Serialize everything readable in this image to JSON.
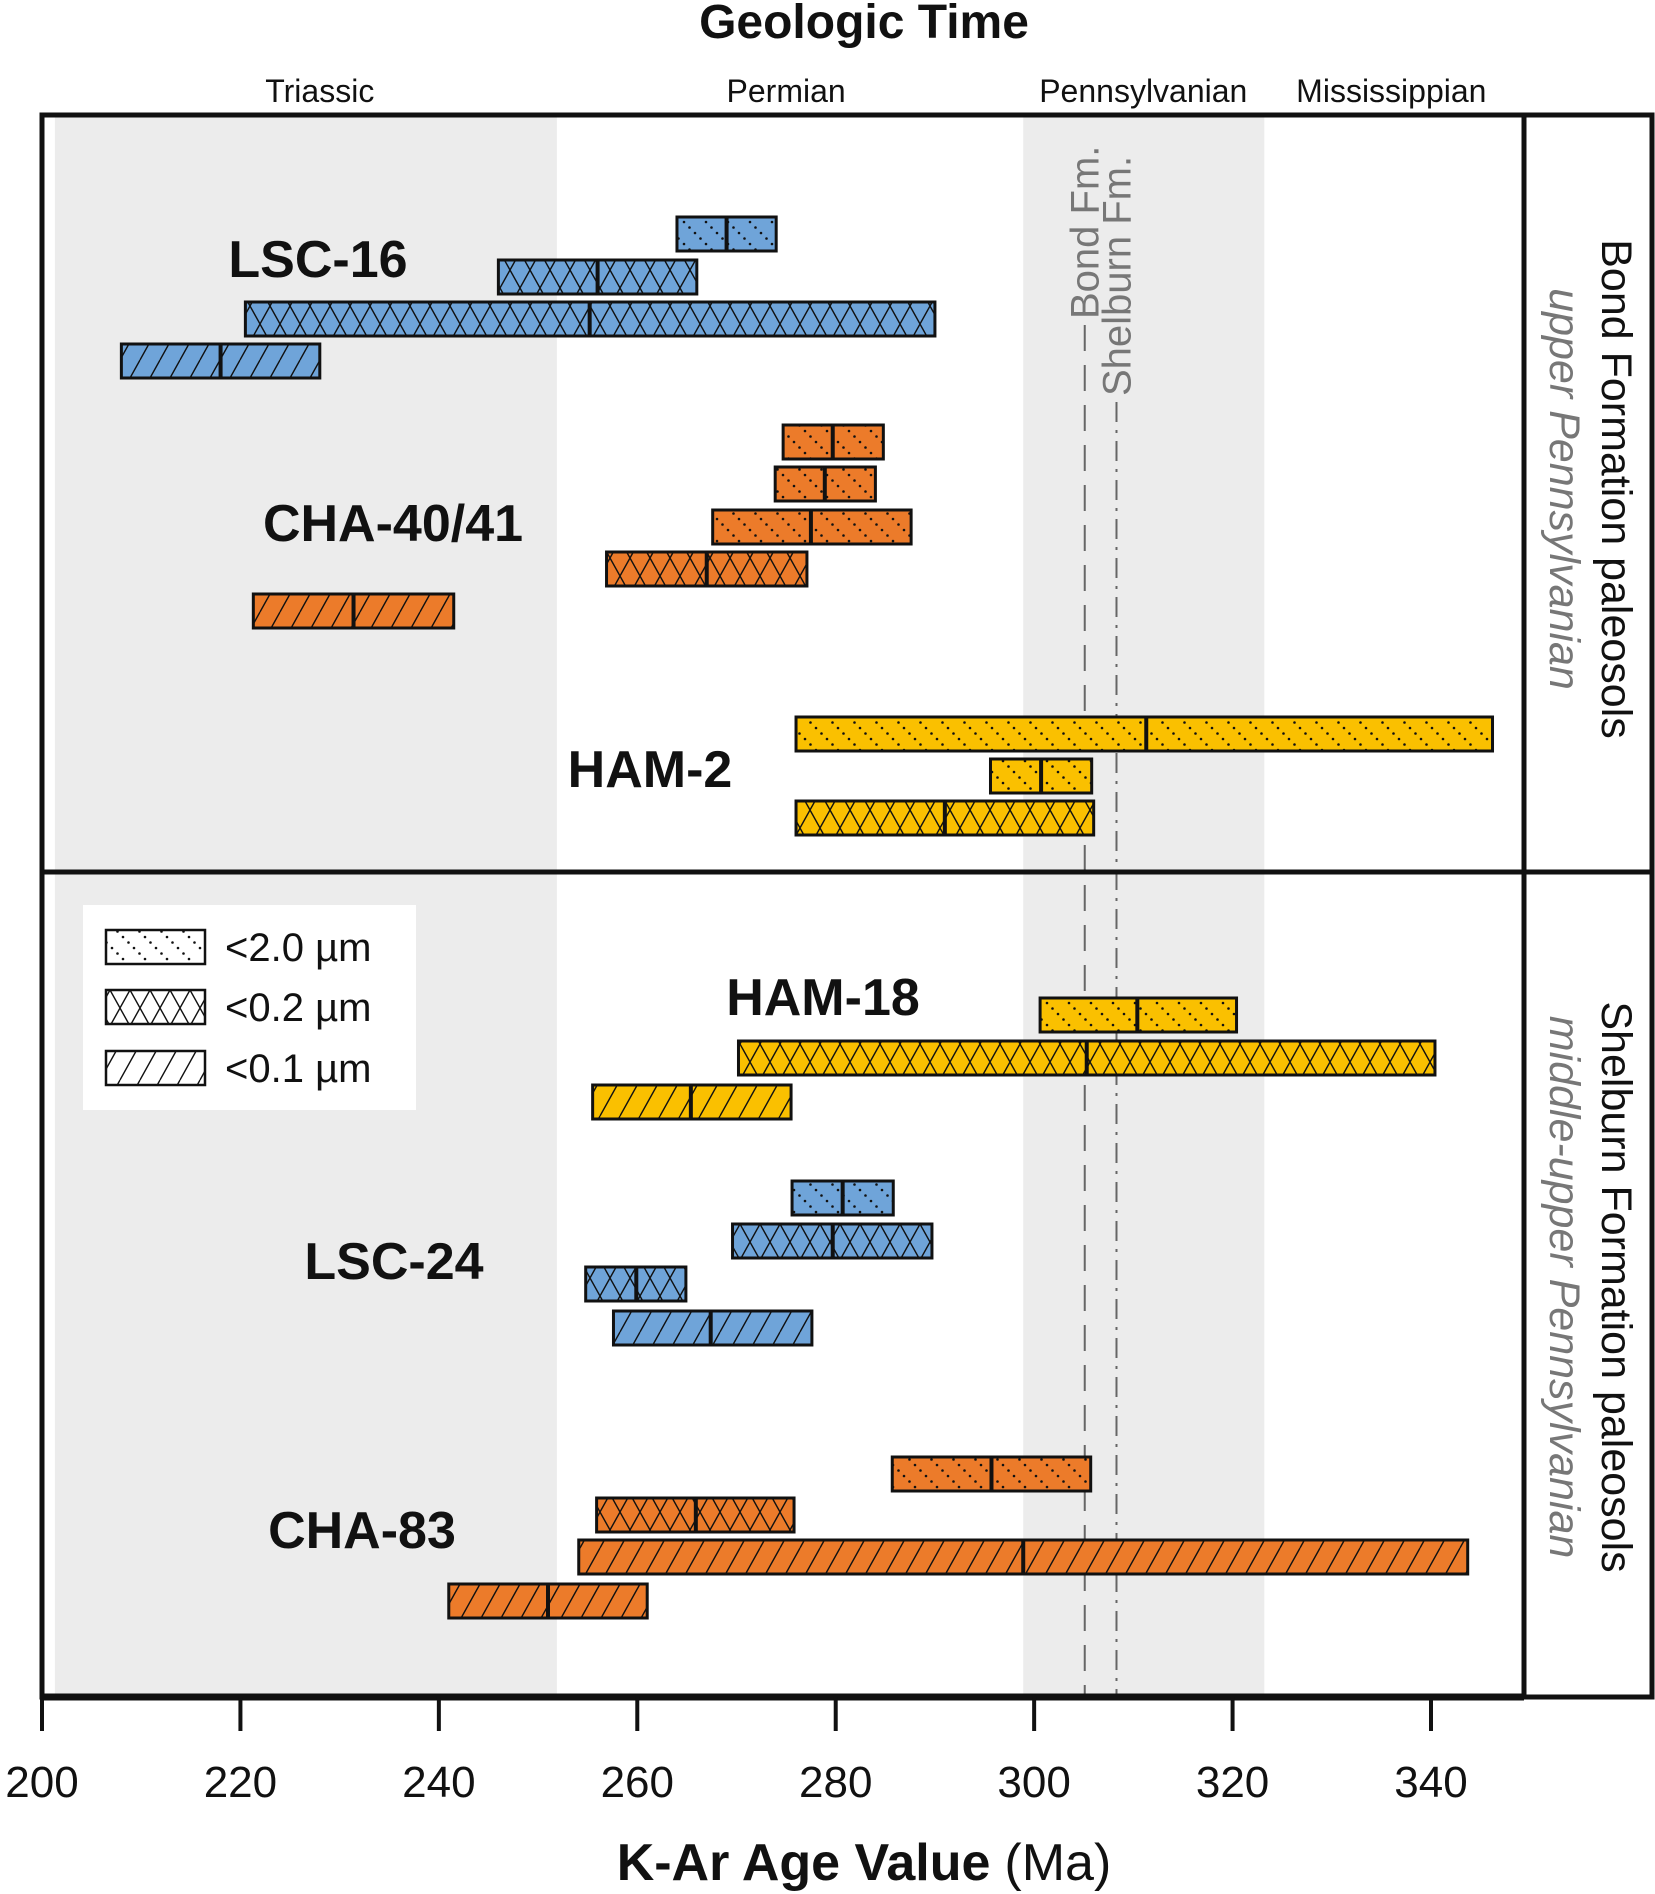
{
  "chart_data": {
    "type": "bar",
    "subtype": "horizontal range bars",
    "title": "Geologic Time",
    "xlabel_bold": "K-Ar Age Value",
    "xlabel_unit": "(Ma)",
    "xlim": [
      200,
      350
    ],
    "xticks": [
      200,
      220,
      240,
      260,
      280,
      300,
      320,
      340
    ],
    "periods": [
      {
        "label": "Triassic",
        "center": 228
      },
      {
        "label": "Permian",
        "center": 275
      },
      {
        "label": "Pennsylvanian",
        "center": 311
      },
      {
        "label": "Mississippian",
        "center": 336
      }
    ],
    "shaded_ranges": [
      [
        201.3,
        251.9
      ],
      [
        298.9,
        323.2
      ]
    ],
    "reference_lines": [
      {
        "label": "Bond Fm.",
        "value": 305.1,
        "style": "dashed"
      },
      {
        "label": "Shelburn Fm.",
        "value": 308.3,
        "style": "dash-dot"
      }
    ],
    "legend": {
      "placement": "lower-left panel top-left",
      "entries": [
        {
          "key": "coarse",
          "label": "<2.0 µm",
          "pattern": "dotted-diagonal"
        },
        {
          "key": "medium",
          "label": "<0.2 µm",
          "pattern": "crosshatch"
        },
        {
          "key": "fine",
          "label": "<0.1 µm",
          "pattern": "diagonal-hatch"
        }
      ]
    },
    "panels": [
      {
        "label": "Bond Formation paleosols",
        "sublabel": "upper Pennsylvanian",
        "samples": [
          {
            "name": "LSC-16",
            "color": "#6fa4d9",
            "bars": [
              {
                "fraction": "coarse",
                "min": 264,
                "max": 274,
                "age": 269
              },
              {
                "fraction": "medium",
                "min": 246,
                "max": 266,
                "age": 256
              },
              {
                "fraction": "medium",
                "min": 220.5,
                "max": 290,
                "age": 255.2
              },
              {
                "fraction": "fine",
                "min": 208,
                "max": 228,
                "age": 218
              }
            ]
          },
          {
            "name": "CHA-40/41",
            "color": "#ec7b2a",
            "bars": [
              {
                "fraction": "coarse",
                "min": 274.7,
                "max": 284.8,
                "age": 279.7
              },
              {
                "fraction": "coarse",
                "min": 273.9,
                "max": 284,
                "age": 278.9
              },
              {
                "fraction": "coarse",
                "min": 267.6,
                "max": 287.6,
                "age": 277.5
              },
              {
                "fraction": "medium",
                "min": 256.9,
                "max": 277.1,
                "age": 267
              },
              {
                "fraction": "fine",
                "min": 221.3,
                "max": 241.5,
                "age": 231.4
              }
            ]
          },
          {
            "name": "HAM-2",
            "color": "#fac000",
            "bars": [
              {
                "fraction": "coarse",
                "min": 276,
                "max": 346.2,
                "age": 311.3
              },
              {
                "fraction": "coarse",
                "min": 295.6,
                "max": 305.8,
                "age": 300.7
              },
              {
                "fraction": "medium",
                "min": 276,
                "max": 306,
                "age": 291
              }
            ]
          }
        ]
      },
      {
        "label": "Shelburn Formation paleosols",
        "sublabel": "middle-upper Pennsylvanian",
        "samples": [
          {
            "name": "HAM-18",
            "color": "#fac000",
            "bars": [
              {
                "fraction": "coarse",
                "min": 300.6,
                "max": 320.4,
                "age": 310.4
              },
              {
                "fraction": "medium",
                "min": 270.2,
                "max": 340.4,
                "age": 305.3
              },
              {
                "fraction": "fine",
                "min": 255.5,
                "max": 275.5,
                "age": 265.4
              }
            ]
          },
          {
            "name": "LSC-24",
            "color": "#6fa4d9",
            "bars": [
              {
                "fraction": "coarse",
                "min": 275.6,
                "max": 285.8,
                "age": 280.7
              },
              {
                "fraction": "medium",
                "min": 269.6,
                "max": 289.7,
                "age": 279.7
              },
              {
                "fraction": "medium",
                "min": 254.8,
                "max": 264.9,
                "age": 259.9
              },
              {
                "fraction": "fine",
                "min": 257.6,
                "max": 277.6,
                "age": 267.4
              }
            ]
          },
          {
            "name": "CHA-83",
            "color": "#ec7b2a",
            "bars": [
              {
                "fraction": "coarse",
                "min": 285.7,
                "max": 305.7,
                "age": 295.7
              },
              {
                "fraction": "medium",
                "min": 255.9,
                "max": 275.8,
                "age": 265.9
              },
              {
                "fraction": "fine",
                "min": 254.1,
                "max": 343.7,
                "age": 298.9
              },
              {
                "fraction": "fine",
                "min": 241,
                "max": 261,
                "age": 251
              }
            ]
          }
        ]
      }
    ]
  }
}
